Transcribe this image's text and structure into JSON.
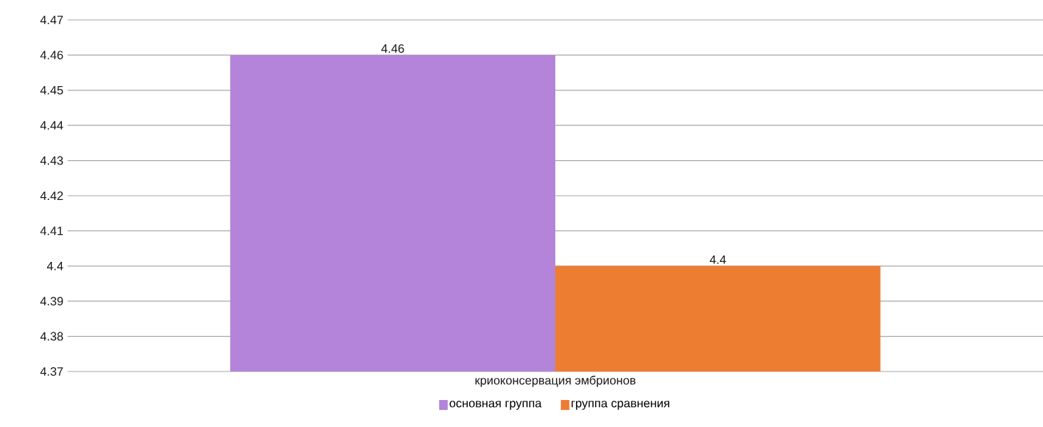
{
  "chart_data": {
    "type": "bar",
    "categories": [
      "криоконсервация эмбрионов"
    ],
    "series": [
      {
        "name": "основная группа",
        "color": "#b384d9",
        "values": [
          4.46
        ]
      },
      {
        "name": "группа сравнения",
        "color": "#ed7d31",
        "values": [
          4.4
        ]
      }
    ],
    "ylim": [
      4.37,
      4.47
    ],
    "yticks": [
      4.37,
      4.38,
      4.39,
      4.4,
      4.41,
      4.42,
      4.43,
      4.44,
      4.45,
      4.46,
      4.47
    ],
    "grid": "y",
    "legend": "bottom",
    "data_labels": true
  }
}
